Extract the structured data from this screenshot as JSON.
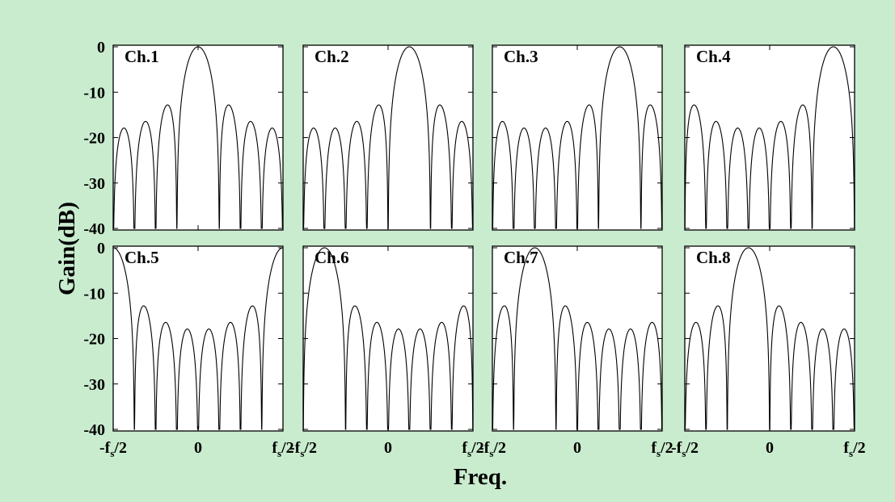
{
  "chart_data": {
    "type": "line",
    "xlabel": "Freq.",
    "ylabel": "Gain(dB)",
    "ylim": [
      -40,
      0
    ],
    "yticks": [
      "0",
      "-10",
      "-20",
      "-30",
      "-40"
    ],
    "xlim": [
      -0.5,
      0.5
    ],
    "xticks": [
      {
        "value": -0.5,
        "main": "-f",
        "sub": "s",
        "tail": "/2"
      },
      {
        "value": 0,
        "main": "0",
        "sub": "",
        "tail": ""
      },
      {
        "value": 0.5,
        "main": "f",
        "sub": "s",
        "tail": "/2"
      }
    ],
    "channels": 8,
    "grid": false,
    "panels": [
      {
        "label": "Ch.1",
        "center": 0.0
      },
      {
        "label": "Ch.2",
        "center": 0.125
      },
      {
        "label": "Ch.3",
        "center": 0.25
      },
      {
        "label": "Ch.4",
        "center": 0.375
      },
      {
        "label": "Ch.5",
        "center": 0.5
      },
      {
        "label": "Ch.6",
        "center": -0.375
      },
      {
        "label": "Ch.7",
        "center": -0.25
      },
      {
        "label": "Ch.8",
        "center": -0.125
      }
    ]
  },
  "colors": {
    "background": "#c9ecce",
    "plot_area": "#ffffff",
    "line": "#000000"
  }
}
